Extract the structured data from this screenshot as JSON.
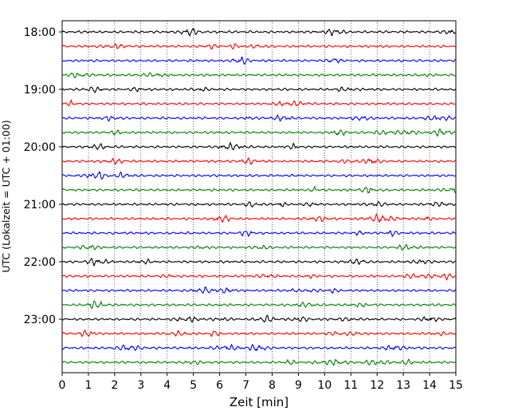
{
  "chart_data": {
    "type": "line",
    "title": "",
    "xlabel": "Zeit  [min]",
    "ylabel": "UTC (Lokalzeit = UTC + 01:00)",
    "xlim": [
      0,
      15
    ],
    "x_ticks": [
      "0",
      "1",
      "2",
      "3",
      "4",
      "5",
      "6",
      "7",
      "8",
      "9",
      "10",
      "11",
      "12",
      "13",
      "14",
      "15"
    ],
    "y_ticks": [
      "18:00",
      "19:00",
      "20:00",
      "21:00",
      "22:00",
      "23:00"
    ],
    "grid": "vertical dotted",
    "rows_per_hour": 4,
    "row_times": [
      "18:00",
      "18:15",
      "18:30",
      "18:45",
      "19:00",
      "19:15",
      "19:30",
      "19:45",
      "20:00",
      "20:15",
      "20:30",
      "20:45",
      "21:00",
      "21:15",
      "21:30",
      "21:45",
      "22:00",
      "22:15",
      "22:30",
      "22:45",
      "23:00",
      "23:15",
      "23:30",
      "23:45"
    ],
    "colors": [
      "#000000",
      "#ff0000",
      "#0000ff",
      "#008000"
    ]
  }
}
